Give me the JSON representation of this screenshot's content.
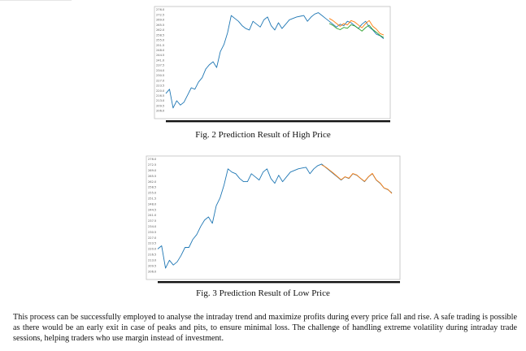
{
  "colors": {
    "actual": "#1f77b4",
    "predicted": "#ff7f0e",
    "predicted_alt": "#2ca02c"
  },
  "chart_data": [
    {
      "type": "line",
      "ylim": [
        204,
        276
      ],
      "y_ticks": [
        "276.0",
        "272.5",
        "269.0",
        "265.5",
        "262.0",
        "258.5",
        "255.0",
        "251.5",
        "248.0",
        "244.5",
        "241.0",
        "237.5",
        "234.0",
        "230.5",
        "227.0",
        "223.5",
        "220.0",
        "216.5",
        "213.0",
        "209.5",
        "206.0"
      ],
      "series": [
        {
          "role": "actual",
          "x": [
            0,
            3,
            6,
            9,
            12,
            15,
            18,
            21,
            24,
            27,
            30,
            33,
            36,
            39,
            42,
            45,
            48,
            51,
            54,
            57,
            60,
            63,
            66,
            69,
            72,
            75,
            78,
            81,
            84,
            87,
            90,
            93,
            96,
            99,
            102,
            105,
            108,
            111,
            114,
            117,
            120,
            123,
            126,
            129,
            132,
            135,
            138,
            141,
            144,
            147,
            150,
            153,
            156,
            159,
            162,
            165,
            168,
            171,
            174,
            177,
            180
          ],
          "y": [
            218,
            221,
            208,
            213,
            210,
            212,
            217,
            222,
            221,
            226,
            229,
            235,
            238,
            240,
            236,
            247,
            252,
            260,
            272,
            270,
            268,
            265,
            263,
            262,
            268,
            266,
            264,
            269,
            271,
            265,
            262,
            267,
            263,
            266,
            269,
            270,
            271,
            271.5,
            272,
            268,
            271,
            273,
            274,
            272,
            270,
            268,
            266,
            264,
            266,
            265,
            268,
            267,
            265,
            263,
            266,
            268,
            264,
            262,
            259,
            258,
            256
          ]
        },
        {
          "role": "predicted",
          "x": [
            135,
            138,
            141,
            144,
            147,
            150,
            153,
            156,
            159,
            162,
            165,
            168,
            171,
            174,
            177,
            180
          ],
          "y": [
            270,
            268.5,
            266.5,
            264.5,
            266.5,
            265.5,
            268.5,
            267.5,
            265.5,
            263.5,
            266.5,
            268.5,
            264.5,
            262.5,
            259.5,
            258.5
          ]
        },
        {
          "role": "predicted_alt",
          "x": [
            135,
            138,
            141,
            144,
            147,
            150,
            153,
            156,
            159,
            162,
            165,
            168,
            171,
            174,
            177,
            180
          ],
          "y": [
            266.5,
            265.2,
            263.2,
            262.2,
            263.8,
            263.2,
            265.6,
            264.8,
            263.1,
            261.2,
            263.6,
            265.3,
            262.3,
            260.3,
            258.2,
            256.8
          ]
        }
      ]
    },
    {
      "type": "line",
      "ylim": [
        204,
        276
      ],
      "y_ticks": [
        "276.0",
        "272.5",
        "269.0",
        "265.5",
        "262.0",
        "258.5",
        "255.0",
        "251.5",
        "248.0",
        "244.5",
        "241.0",
        "237.5",
        "234.0",
        "230.5",
        "227.0",
        "223.5",
        "220.0",
        "216.5",
        "213.0",
        "209.5",
        "206.0"
      ],
      "series": [
        {
          "role": "actual",
          "x": [
            0,
            3,
            6,
            9,
            12,
            15,
            18,
            21,
            24,
            27,
            30,
            33,
            36,
            39,
            42,
            45,
            48,
            51,
            54,
            57,
            60,
            63,
            66,
            69,
            72,
            75,
            78,
            81,
            84,
            87,
            90,
            93,
            96,
            99,
            102,
            105,
            108,
            111,
            114,
            117,
            120,
            123,
            126,
            129,
            132,
            135,
            138,
            141,
            144,
            147,
            150,
            153,
            156,
            159,
            162,
            165,
            168,
            171,
            174,
            177,
            180
          ],
          "y": [
            220,
            222,
            208,
            213,
            210,
            212,
            216,
            221,
            221,
            226,
            229,
            234,
            238,
            240,
            236,
            247,
            252,
            260,
            270,
            268,
            267,
            264,
            262,
            262,
            267,
            265,
            263,
            268,
            270,
            264,
            261,
            266,
            262,
            265,
            268,
            269,
            270,
            270.5,
            271,
            267,
            270,
            272,
            273,
            271,
            269,
            267,
            265,
            263,
            265,
            264,
            267,
            266,
            264,
            262,
            265,
            267,
            263,
            261,
            258,
            257,
            255
          ]
        },
        {
          "role": "predicted",
          "x": [
            126,
            129,
            132,
            135,
            138,
            141,
            144,
            147,
            150,
            153,
            156,
            159,
            162,
            165,
            168,
            171,
            174,
            177,
            180
          ],
          "y": [
            272.5,
            271.2,
            269.3,
            267.4,
            265.3,
            263.2,
            265.1,
            264.2,
            267.1,
            266.2,
            264.1,
            262.2,
            265.1,
            267.2,
            263.1,
            261.2,
            258.1,
            257.2,
            254.6
          ]
        }
      ]
    }
  ],
  "fig2_caption": "Fig. 2  Prediction Result of High Price",
  "fig3_caption": "Fig. 3  Prediction Result of Low Price",
  "body_text": "This process can be successfully employed to analyse the intraday trend and maximize profits during every price fall and rise. A safe trading is possible as there would be an early exit in case of peaks and pits, to ensure minimal loss. The challenge of handling extreme volatility during intraday trade sessions, helping traders who use margin instead of investment."
}
